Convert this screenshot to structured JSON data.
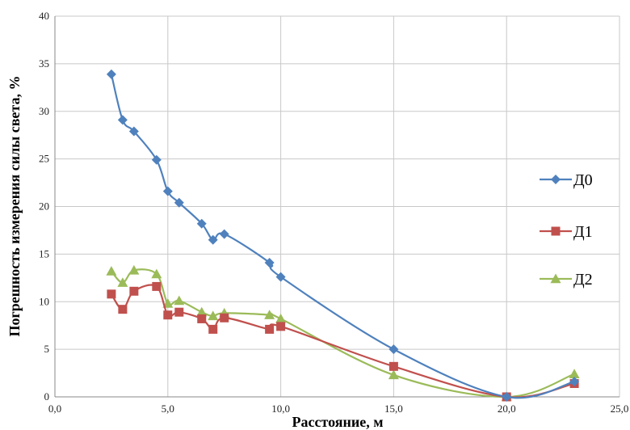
{
  "chart_data": {
    "type": "line",
    "xlabel": "Расстояние, м",
    "ylabel": "Погрешность измерения силы света, %",
    "xlim": [
      0,
      25
    ],
    "ylim": [
      0,
      40
    ],
    "x_ticks": [
      "0,0",
      "5,0",
      "10,0",
      "15,0",
      "20,0",
      "25,0"
    ],
    "y_ticks": [
      "0",
      "5",
      "10",
      "15",
      "20",
      "25",
      "30",
      "35",
      "40"
    ],
    "grid": true,
    "legend_position": "right",
    "series": [
      {
        "name": "Д0",
        "color": "#4F81BD",
        "marker": "diamond",
        "points": [
          [
            2.5,
            33.9
          ],
          [
            3.0,
            29.1
          ],
          [
            3.5,
            27.9
          ],
          [
            4.5,
            24.9
          ],
          [
            5.0,
            21.6
          ],
          [
            5.5,
            20.4
          ],
          [
            6.5,
            18.2
          ],
          [
            7.0,
            16.5
          ],
          [
            7.5,
            17.1
          ],
          [
            9.5,
            14.1
          ],
          [
            10.0,
            12.6
          ],
          [
            15.0,
            5.0
          ],
          [
            20.0,
            0.0
          ],
          [
            23.0,
            1.6
          ]
        ]
      },
      {
        "name": "Д1",
        "color": "#C0504D",
        "marker": "square",
        "points": [
          [
            2.5,
            10.8
          ],
          [
            3.0,
            9.2
          ],
          [
            3.5,
            11.1
          ],
          [
            4.5,
            11.6
          ],
          [
            5.0,
            8.6
          ],
          [
            5.5,
            8.9
          ],
          [
            6.5,
            8.2
          ],
          [
            7.0,
            7.1
          ],
          [
            7.5,
            8.3
          ],
          [
            9.5,
            7.1
          ],
          [
            10.0,
            7.4
          ],
          [
            15.0,
            3.2
          ],
          [
            20.0,
            0.0
          ],
          [
            23.0,
            1.4
          ]
        ]
      },
      {
        "name": "Д2",
        "color": "#9BBB59",
        "marker": "triangle",
        "points": [
          [
            2.5,
            13.2
          ],
          [
            3.0,
            12.0
          ],
          [
            3.5,
            13.3
          ],
          [
            4.5,
            12.9
          ],
          [
            5.0,
            9.8
          ],
          [
            5.5,
            10.1
          ],
          [
            6.5,
            8.9
          ],
          [
            7.0,
            8.5
          ],
          [
            7.5,
            8.8
          ],
          [
            9.5,
            8.6
          ],
          [
            10.0,
            8.2
          ],
          [
            15.0,
            2.3
          ],
          [
            20.0,
            0.0
          ],
          [
            23.0,
            2.4
          ]
        ]
      }
    ]
  }
}
